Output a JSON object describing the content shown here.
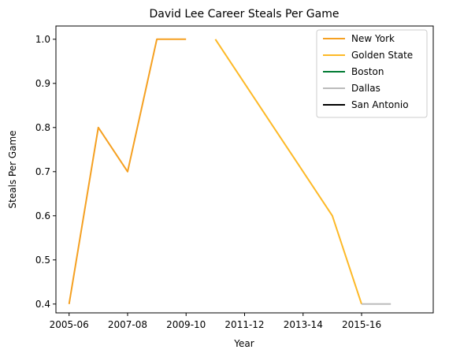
{
  "chart_data": {
    "type": "line",
    "title": "David Lee  Career Steals Per Game",
    "xlabel": "Year",
    "ylabel": "Steals Per Game",
    "x_ticks": [
      "2005-06",
      "2007-08",
      "2009-10",
      "2011-12",
      "2013-14",
      "2015-16"
    ],
    "y_ticks": [
      "0.4",
      "0.5",
      "0.6",
      "0.7",
      "0.8",
      "0.9",
      "1.0"
    ],
    "ylim": [
      0.38,
      1.03
    ],
    "legend_position": "top-right",
    "grid": false,
    "series": [
      {
        "name": "New York",
        "color": "#F5A021",
        "points": [
          [
            "2005-06",
            0.4
          ],
          [
            "2006-07",
            0.8
          ],
          [
            "2007-08",
            0.7
          ],
          [
            "2008-09",
            1.0
          ],
          [
            "2009-10",
            1.0
          ]
        ]
      },
      {
        "name": "Golden State",
        "color": "#FDB927",
        "points": [
          [
            "2010-11",
            1.0
          ],
          [
            "2011-12",
            0.9
          ],
          [
            "2012-13",
            0.8
          ],
          [
            "2013-14",
            0.7
          ],
          [
            "2014-15",
            0.6
          ],
          [
            "2015-16",
            0.4
          ]
        ]
      },
      {
        "name": "Boston",
        "color": "#007A33",
        "points": []
      },
      {
        "name": "Dallas",
        "color": "#BBBBBB",
        "points": [
          [
            "2015-16",
            0.4
          ],
          [
            "2016-17",
            0.4
          ]
        ]
      },
      {
        "name": "San Antonio",
        "color": "#000000",
        "points": []
      }
    ]
  }
}
